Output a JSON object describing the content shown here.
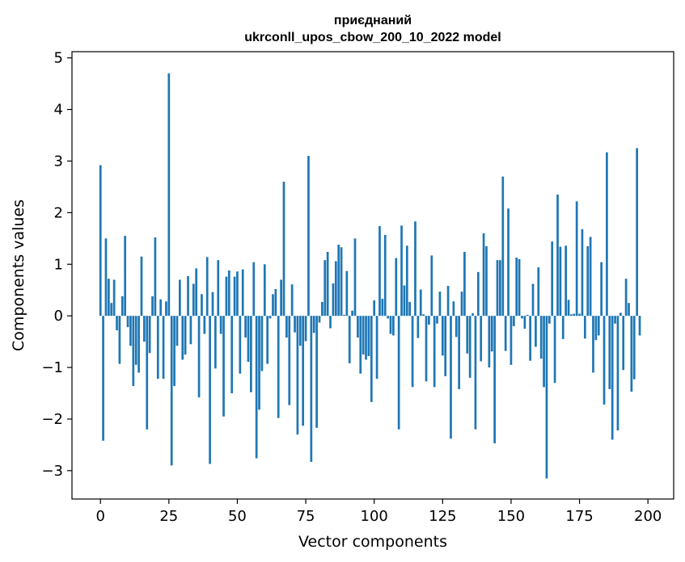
{
  "chart_data": {
    "type": "bar",
    "title": "приєднаний\nukrconll_upos_cbow_200_10_2022 model",
    "title_lines": [
      "приєднаний",
      "ukrconll_upos_cbow_200_10_2022 model"
    ],
    "xlabel": "Vector components",
    "ylabel": "Components values",
    "xlim": [
      -10.4,
      209.4
    ],
    "ylim": [
      -3.55,
      5.12
    ],
    "xticks": [
      0,
      25,
      50,
      75,
      100,
      125,
      150,
      175,
      200
    ],
    "yticks": [
      -3,
      -2,
      -1,
      0,
      1,
      2,
      3,
      4,
      5
    ],
    "xtick_labels": [
      "0",
      "25",
      "50",
      "75",
      "100",
      "125",
      "150",
      "175",
      "200"
    ],
    "ytick_labels": [
      "−3",
      "−2",
      "−1",
      "0",
      "1",
      "2",
      "3",
      "4",
      "5"
    ],
    "grid": false,
    "bar_color": "#1f77b4",
    "values": [
      2.92,
      -2.42,
      1.5,
      0.72,
      0.25,
      0.7,
      -0.28,
      -0.93,
      0.38,
      1.55,
      -0.22,
      -0.58,
      -1.36,
      -0.95,
      -1.1,
      1.15,
      -0.5,
      -2.2,
      -0.72,
      0.38,
      1.52,
      -1.22,
      0.32,
      -1.22,
      0.28,
      4.7,
      -2.9,
      -1.36,
      -0.58,
      0.7,
      -0.85,
      -0.75,
      0.77,
      -0.55,
      0.62,
      0.92,
      -1.58,
      0.42,
      -0.35,
      1.14,
      -2.87,
      0.46,
      -1.02,
      1.08,
      -0.35,
      -1.95,
      0.76,
      0.88,
      -1.5,
      0.76,
      0.86,
      -1.12,
      0.9,
      -0.42,
      -0.89,
      -1.48,
      1.04,
      -2.76,
      -1.82,
      -1.07,
      1.0,
      -0.93,
      -0.05,
      0.42,
      0.52,
      -1.98,
      0.7,
      2.6,
      -0.42,
      -1.73,
      0.61,
      -0.32,
      -2.3,
      -0.58,
      -2.13,
      -0.49,
      3.1,
      -2.83,
      -0.33,
      -2.17,
      -0.13,
      0.27,
      1.08,
      1.24,
      -0.24,
      0.63,
      1.06,
      1.38,
      1.33,
      0.02,
      0.87,
      -0.92,
      0.1,
      1.5,
      -0.42,
      -1.12,
      -0.75,
      -0.85,
      -0.78,
      -1.67,
      0.3,
      -1.22,
      1.74,
      0.33,
      1.57,
      -0.05,
      -0.35,
      -0.38,
      1.12,
      -2.2,
      1.75,
      0.59,
      1.36,
      0.27,
      -1.38,
      1.83,
      -0.43,
      0.51,
      0.03,
      -1.27,
      -0.17,
      1.17,
      -1.38,
      -0.15,
      0.47,
      -0.77,
      -1.17,
      0.58,
      -2.38,
      0.28,
      -0.41,
      -1.42,
      0.47,
      1.24,
      -0.73,
      -1.2,
      0.05,
      -2.2,
      0.85,
      -0.88,
      1.6,
      1.35,
      -1.0,
      -0.69,
      -2.47,
      1.08,
      1.08,
      2.7,
      -0.68,
      2.08,
      -0.95,
      -0.2,
      1.13,
      1.1,
      -0.05,
      -0.25,
      0.02,
      -0.87,
      0.62,
      -0.6,
      0.94,
      -0.83,
      -1.38,
      -3.15,
      -0.15,
      1.44,
      -1.3,
      2.35,
      1.34,
      -0.45,
      1.36,
      0.31,
      0.03,
      0.04,
      2.22,
      0.04,
      1.68,
      -0.44,
      1.35,
      1.53,
      -1.1,
      -0.47,
      -0.38,
      1.04,
      -1.72,
      3.17,
      -1.42,
      -2.4,
      -0.15,
      -2.22,
      0.06,
      -1.05,
      0.72,
      0.25,
      -1.47,
      -1.23,
      3.25,
      -0.38
    ]
  }
}
